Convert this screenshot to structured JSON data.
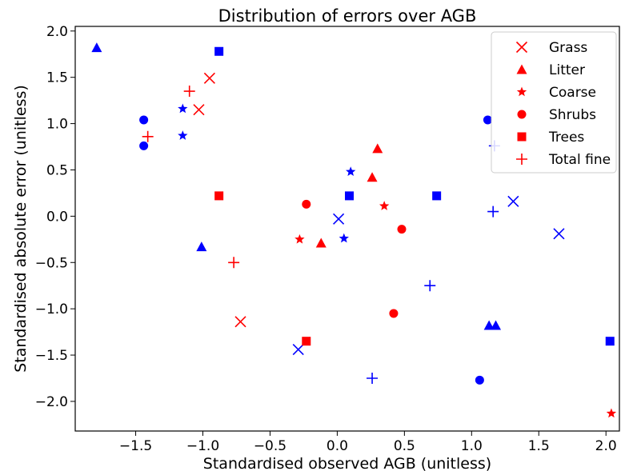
{
  "chart_data": {
    "type": "scatter",
    "title": "Distribution of errors over AGB",
    "xlabel": "Standardised observed AGB (unitless)",
    "ylabel": "Standardised absolute error (unitless)",
    "xlim": [
      -1.95,
      2.1
    ],
    "ylim": [
      -2.32,
      2.05
    ],
    "xticks": [
      -1.5,
      -1.0,
      -0.5,
      0.0,
      0.5,
      1.0,
      1.5,
      2.0
    ],
    "xtick_labels": [
      "−1.5",
      "−1.0",
      "−0.5",
      "0.0",
      "0.5",
      "1.0",
      "1.5",
      "2.0"
    ],
    "yticks": [
      2.0,
      1.5,
      1.0,
      0.5,
      0.0,
      -0.5,
      -1.0,
      -1.5,
      -2.0
    ],
    "ytick_labels": [
      "2.0",
      "1.5",
      "1.0",
      "0.5",
      "0.0",
      "−0.5",
      "−1.0",
      "−1.5",
      "−2.0"
    ],
    "grid": false,
    "legend_position": "top-right",
    "colors": {
      "red": "#ff0000",
      "blue": "#0000ff"
    },
    "series": [
      {
        "name": "Grass",
        "marker": "x",
        "points": [
          {
            "x": -0.95,
            "y": 1.49,
            "color": "red"
          },
          {
            "x": -1.03,
            "y": 1.15,
            "color": "red"
          },
          {
            "x": -0.72,
            "y": -1.14,
            "color": "red"
          },
          {
            "x": 0.01,
            "y": -0.03,
            "color": "blue"
          },
          {
            "x": -0.29,
            "y": -1.44,
            "color": "blue"
          },
          {
            "x": 1.31,
            "y": 0.16,
            "color": "blue"
          },
          {
            "x": 1.65,
            "y": -0.19,
            "color": "blue"
          }
        ]
      },
      {
        "name": "Litter",
        "marker": "triangle",
        "points": [
          {
            "x": 0.3,
            "y": 0.73,
            "color": "red"
          },
          {
            "x": 0.26,
            "y": 0.42,
            "color": "red"
          },
          {
            "x": -0.12,
            "y": -0.29,
            "color": "red"
          },
          {
            "x": -1.79,
            "y": 1.82,
            "color": "blue"
          },
          {
            "x": -1.01,
            "y": -0.33,
            "color": "blue"
          },
          {
            "x": 1.13,
            "y": -1.18,
            "color": "blue"
          },
          {
            "x": 1.18,
            "y": -1.18,
            "color": "blue"
          }
        ]
      },
      {
        "name": "Coarse",
        "marker": "star",
        "points": [
          {
            "x": 0.35,
            "y": 0.11,
            "color": "red"
          },
          {
            "x": -0.28,
            "y": -0.25,
            "color": "red"
          },
          {
            "x": 2.04,
            "y": -2.13,
            "color": "red"
          },
          {
            "x": -1.15,
            "y": 1.16,
            "color": "blue"
          },
          {
            "x": -1.15,
            "y": 0.87,
            "color": "blue"
          },
          {
            "x": 0.1,
            "y": 0.48,
            "color": "blue"
          },
          {
            "x": 0.05,
            "y": -0.24,
            "color": "blue"
          }
        ]
      },
      {
        "name": "Shrubs",
        "marker": "circle",
        "points": [
          {
            "x": -0.23,
            "y": 0.13,
            "color": "red"
          },
          {
            "x": 0.48,
            "y": -0.14,
            "color": "red"
          },
          {
            "x": 0.42,
            "y": -1.05,
            "color": "red"
          },
          {
            "x": -1.44,
            "y": 1.04,
            "color": "blue"
          },
          {
            "x": -1.44,
            "y": 0.76,
            "color": "blue"
          },
          {
            "x": 1.12,
            "y": 1.04,
            "color": "blue"
          },
          {
            "x": 1.06,
            "y": -1.77,
            "color": "blue"
          }
        ]
      },
      {
        "name": "Trees",
        "marker": "square",
        "points": [
          {
            "x": -0.88,
            "y": 0.22,
            "color": "red"
          },
          {
            "x": -0.23,
            "y": -1.35,
            "color": "red"
          },
          {
            "x": -0.88,
            "y": 1.78,
            "color": "blue"
          },
          {
            "x": 0.09,
            "y": 0.22,
            "color": "blue"
          },
          {
            "x": 0.74,
            "y": 0.22,
            "color": "blue"
          },
          {
            "x": 2.03,
            "y": -1.35,
            "color": "blue"
          }
        ]
      },
      {
        "name": "Total fine",
        "marker": "plus",
        "points": [
          {
            "x": -1.1,
            "y": 1.35,
            "color": "red"
          },
          {
            "x": -1.41,
            "y": 0.86,
            "color": "red"
          },
          {
            "x": -0.77,
            "y": -0.5,
            "color": "red"
          },
          {
            "x": 1.17,
            "y": 0.76,
            "color": "blue"
          },
          {
            "x": 1.16,
            "y": 0.05,
            "color": "blue"
          },
          {
            "x": 0.69,
            "y": -0.75,
            "color": "blue"
          },
          {
            "x": 0.26,
            "y": -1.75,
            "color": "blue"
          }
        ]
      }
    ]
  }
}
